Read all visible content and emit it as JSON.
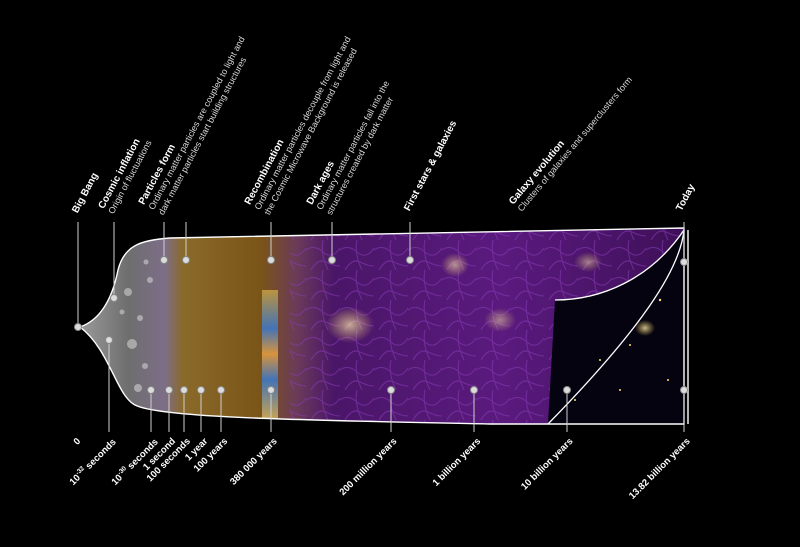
{
  "epochs": {
    "big_bang": {
      "title": "Big Bang"
    },
    "cosmic_inflation": {
      "title": "Cosmic inflation",
      "desc": "Origin of fluctuations"
    },
    "particles_form": {
      "title": "Particles form",
      "desc1": "Ordinary matter particles are coupled to light and",
      "desc2": "dark matter particles start building structures"
    },
    "recombination": {
      "title": "Recombination",
      "desc1": "Ordinary matter particles decouple from light and",
      "desc2": "the Cosmic Microwave Background is released"
    },
    "dark_ages": {
      "title": "Dark ages",
      "desc1": "Ordinary  matter  particles  fall  into  the",
      "desc2": "structures created by dark matter"
    },
    "first_stars": {
      "title": "First stars & galaxies"
    },
    "galaxy_evolution": {
      "title": "Galaxy evolution",
      "desc": "Clusters of galaxies and superclusters form"
    },
    "today": {
      "title": "Today"
    }
  },
  "times": {
    "t0": "0",
    "t1_base": "10",
    "t1_exp": "-32",
    "t1_unit": " seconds",
    "t2_base": "10",
    "t2_exp": "-30",
    "t2_unit": " seconds",
    "t3": "1 second",
    "t4": "100 seconds",
    "t5": "1 year",
    "t6": "100 years",
    "t7": "380 000 years",
    "t8": "200 million years",
    "t9": "1 billion years",
    "t10": "10 billion years",
    "t11": "13.82 billion years"
  },
  "colors": {
    "background": "#000000",
    "early_universe": "#7a7a7a",
    "plasma": "#8a5a1c",
    "cosmic_web": "#5a1a7a",
    "galaxies": "#ffe08a",
    "outline": "#ffffff"
  }
}
